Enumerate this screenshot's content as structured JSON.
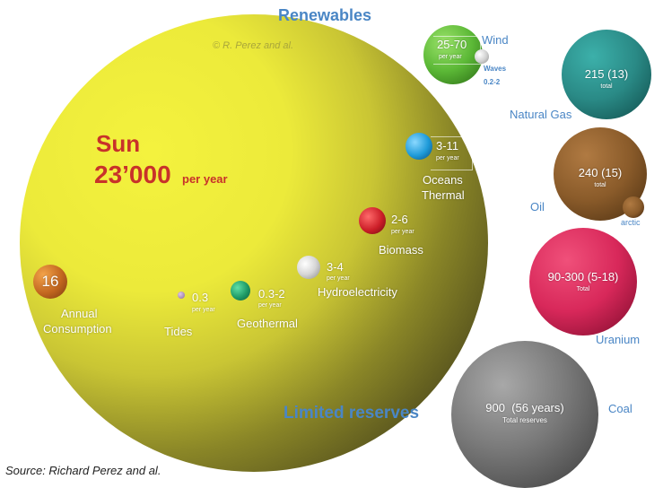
{
  "header": {
    "renewables": "Renewables",
    "limited_reserves": "Limited reserves"
  },
  "credit": "© R. Perez and al.",
  "source": "Source: Richard Perez and al.",
  "sun": {
    "label": "Sun",
    "value": "23’000",
    "unit": "per year"
  },
  "annual_consumption": {
    "value": "16",
    "label_line1": "Annual",
    "label_line2": "Consumption"
  },
  "renewables": [
    {
      "id": "wind",
      "name": "Wind",
      "value": "25-70",
      "unit": "per year"
    },
    {
      "id": "waves",
      "name": "Waves",
      "value": "0.2-2"
    },
    {
      "id": "oceans-thermal",
      "name_line1": "Oceans",
      "name_line2": "Thermal",
      "value": "3-11",
      "unit": "per year"
    },
    {
      "id": "biomass",
      "name": "Biomass",
      "value": "2-6",
      "unit": "per year"
    },
    {
      "id": "hydroelectricity",
      "name": "Hydroelectricity",
      "value": "3-4",
      "unit": "per year"
    },
    {
      "id": "geothermal",
      "name": "Geothermal",
      "value": "0.3-2",
      "unit": "per year"
    },
    {
      "id": "tides",
      "name": "Tides",
      "value": "0.3",
      "unit": "per year"
    }
  ],
  "reserves": [
    {
      "id": "natural-gas",
      "name": "Natural Gas",
      "value": "215 (13)",
      "unit": "total"
    },
    {
      "id": "oil",
      "name": "Oil",
      "value": "240 (15)",
      "unit": "total",
      "sub_name": "arctic"
    },
    {
      "id": "uranium",
      "name": "Uranium",
      "value": "90-300 (5-18)",
      "unit": "Total"
    },
    {
      "id": "coal",
      "name": "Coal",
      "value": "900  (56 years)",
      "unit": "Total reserves"
    }
  ],
  "colors": {
    "sun_light": "#f3f13c",
    "sun_dark": "#3e3a14",
    "wind": "#5bb836",
    "gas": "#2a8a86",
    "oil": "#8a5b2a",
    "uranium": "#d8285a",
    "coal": "#6a6a6a",
    "biomass": "#cc1e28",
    "oceans": "#1d9ad8",
    "geothermal": "#1e9a66",
    "label_blue": "#4a86c5",
    "sun_text": "#c8322a"
  }
}
